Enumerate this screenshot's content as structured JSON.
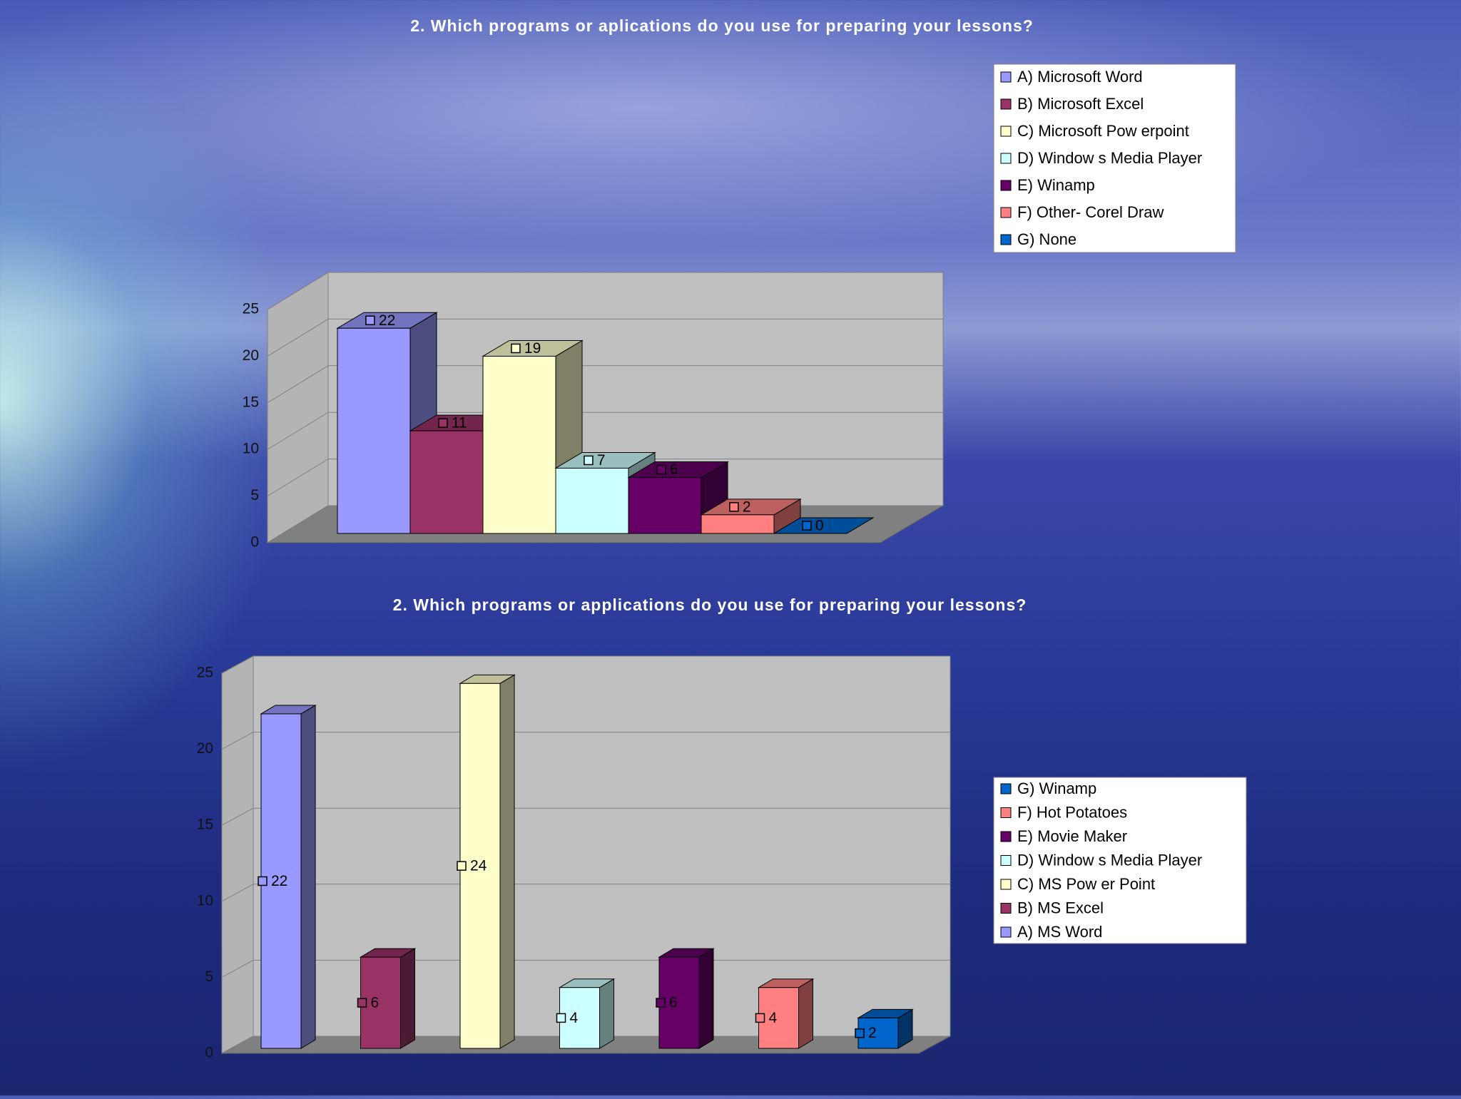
{
  "chart_data": [
    {
      "type": "bar",
      "title": "2. Which programs or aplications do you use for preparing your lessons?",
      "series": [
        {
          "name": "A) Microsoft Word",
          "color": "#9999ff",
          "values": [
            22
          ]
        },
        {
          "name": "B) Microsoft Excel",
          "color": "#993366",
          "values": [
            11
          ]
        },
        {
          "name": "C) Microsoft Pow erpoint",
          "color": "#ffffcc",
          "values": [
            19
          ]
        },
        {
          "name": "D) Window s Media Player",
          "color": "#ccffff",
          "values": [
            7
          ]
        },
        {
          "name": "E) Winamp",
          "color": "#660066",
          "values": [
            6
          ]
        },
        {
          "name": "F) Other- Corel Draw",
          "color": "#ff8080",
          "values": [
            2
          ]
        },
        {
          "name": "G) None",
          "color": "#0066cc",
          "values": [
            0
          ]
        }
      ],
      "ylim": [
        0,
        25
      ],
      "yticks": [
        0,
        5,
        10,
        15,
        20,
        25
      ],
      "grid": true,
      "legend": "upper-right",
      "legend_reversed": false
    },
    {
      "type": "bar",
      "title": "2. Which programs or applications do you use for preparing your lessons?",
      "series": [
        {
          "name": "A) MS Word",
          "color": "#9999ff",
          "values": [
            22
          ]
        },
        {
          "name": "B) MS Excel",
          "color": "#993366",
          "values": [
            6
          ]
        },
        {
          "name": "C) MS Pow er Point",
          "color": "#ffffcc",
          "values": [
            24
          ]
        },
        {
          "name": "D) Window s Media Player",
          "color": "#ccffff",
          "values": [
            4
          ]
        },
        {
          "name": "E) Movie Maker",
          "color": "#660066",
          "values": [
            6
          ]
        },
        {
          "name": "F) Hot Potatoes",
          "color": "#ff8080",
          "values": [
            4
          ]
        },
        {
          "name": "G) Winamp",
          "color": "#0066cc",
          "values": [
            2
          ]
        }
      ],
      "ylim": [
        0,
        25
      ],
      "yticks": [
        0,
        5,
        10,
        15,
        20,
        25
      ],
      "grid": true,
      "legend": "right",
      "legend_reversed": true
    }
  ]
}
